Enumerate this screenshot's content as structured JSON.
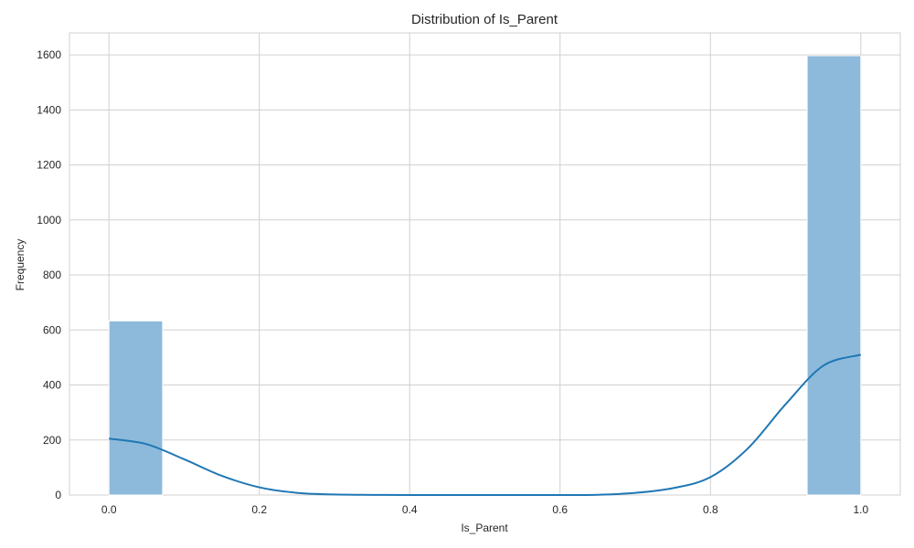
{
  "chart_data": {
    "type": "bar",
    "title": "Distribution of Is_Parent",
    "xlabel": "Is_Parent",
    "ylabel": "Frequency",
    "xlim": [
      -0.0525,
      1.0525
    ],
    "ylim": [
      0,
      1680
    ],
    "xticks": [
      0.0,
      0.2,
      0.4,
      0.6,
      0.8,
      1.0
    ],
    "xtick_labels": [
      "0.0",
      "0.2",
      "0.4",
      "0.6",
      "0.8",
      "1.0"
    ],
    "yticks": [
      0,
      200,
      400,
      600,
      800,
      1000,
      1200,
      1400,
      1600
    ],
    "ytick_labels": [
      "0",
      "200",
      "400",
      "600",
      "800",
      "1000",
      "1200",
      "1400",
      "1600"
    ],
    "grid": true,
    "bins": [
      {
        "x0": 0.0,
        "x1": 0.0714,
        "count": 633
      },
      {
        "x0": 0.9286,
        "x1": 1.0,
        "count": 1597
      }
    ],
    "kde": {
      "x": [
        0.0,
        0.05,
        0.1,
        0.15,
        0.2,
        0.25,
        0.3,
        0.35,
        0.4,
        0.5,
        0.6,
        0.65,
        0.7,
        0.75,
        0.8,
        0.85,
        0.9,
        0.95,
        1.0
      ],
      "y": [
        205,
        185,
        130,
        70,
        28,
        8,
        2,
        0.5,
        0,
        0,
        0,
        1,
        8,
        25,
        65,
        170,
        330,
        470,
        510
      ]
    },
    "colors": {
      "bar_fill": "#8dbadb",
      "bar_edge": "#ffffff",
      "kde_line": "#1f77b4",
      "grid": "#d0d0d0",
      "text": "#262626"
    }
  }
}
